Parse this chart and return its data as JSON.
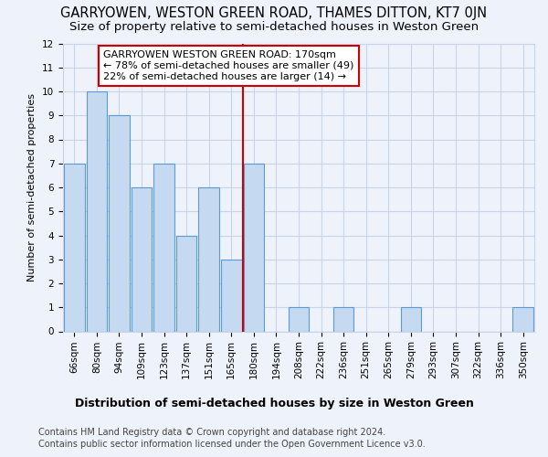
{
  "title": "GARRYOWEN, WESTON GREEN ROAD, THAMES DITTON, KT7 0JN",
  "subtitle": "Size of property relative to semi-detached houses in Weston Green",
  "xlabel_dist": "Distribution of semi-detached houses by size in Weston Green",
  "ylabel": "Number of semi-detached properties",
  "categories": [
    "66sqm",
    "80sqm",
    "94sqm",
    "109sqm",
    "123sqm",
    "137sqm",
    "151sqm",
    "165sqm",
    "180sqm",
    "194sqm",
    "208sqm",
    "222sqm",
    "236sqm",
    "251sqm",
    "265sqm",
    "279sqm",
    "293sqm",
    "307sqm",
    "322sqm",
    "336sqm",
    "350sqm"
  ],
  "values": [
    7,
    10,
    9,
    6,
    7,
    4,
    6,
    3,
    7,
    0,
    1,
    0,
    1,
    0,
    0,
    1,
    0,
    0,
    0,
    0,
    1
  ],
  "bar_color": "#c5d9f1",
  "bar_edge_color": "#5a9bd5",
  "vline_x": 7.5,
  "vline_color": "#cc0000",
  "annotation_line1": "GARRYOWEN WESTON GREEN ROAD: 170sqm",
  "annotation_line2": "← 78% of semi-detached houses are smaller (49)",
  "annotation_line3": "22% of semi-detached houses are larger (14) →",
  "annotation_box_color": "#ffffff",
  "annotation_box_edge": "#cc0000",
  "ylim": [
    0,
    12
  ],
  "yticks": [
    0,
    1,
    2,
    3,
    4,
    5,
    6,
    7,
    8,
    9,
    10,
    11,
    12
  ],
  "footer1": "Contains HM Land Registry data © Crown copyright and database right 2024.",
  "footer2": "Contains public sector information licensed under the Open Government Licence v3.0.",
  "bg_color": "#eef2fa",
  "grid_color": "#c8d4e8",
  "title_fontsize": 10.5,
  "subtitle_fontsize": 9.5,
  "ylabel_fontsize": 8,
  "tick_fontsize": 7.5,
  "annot_fontsize": 8,
  "dist_label_fontsize": 9,
  "footer_fontsize": 7
}
